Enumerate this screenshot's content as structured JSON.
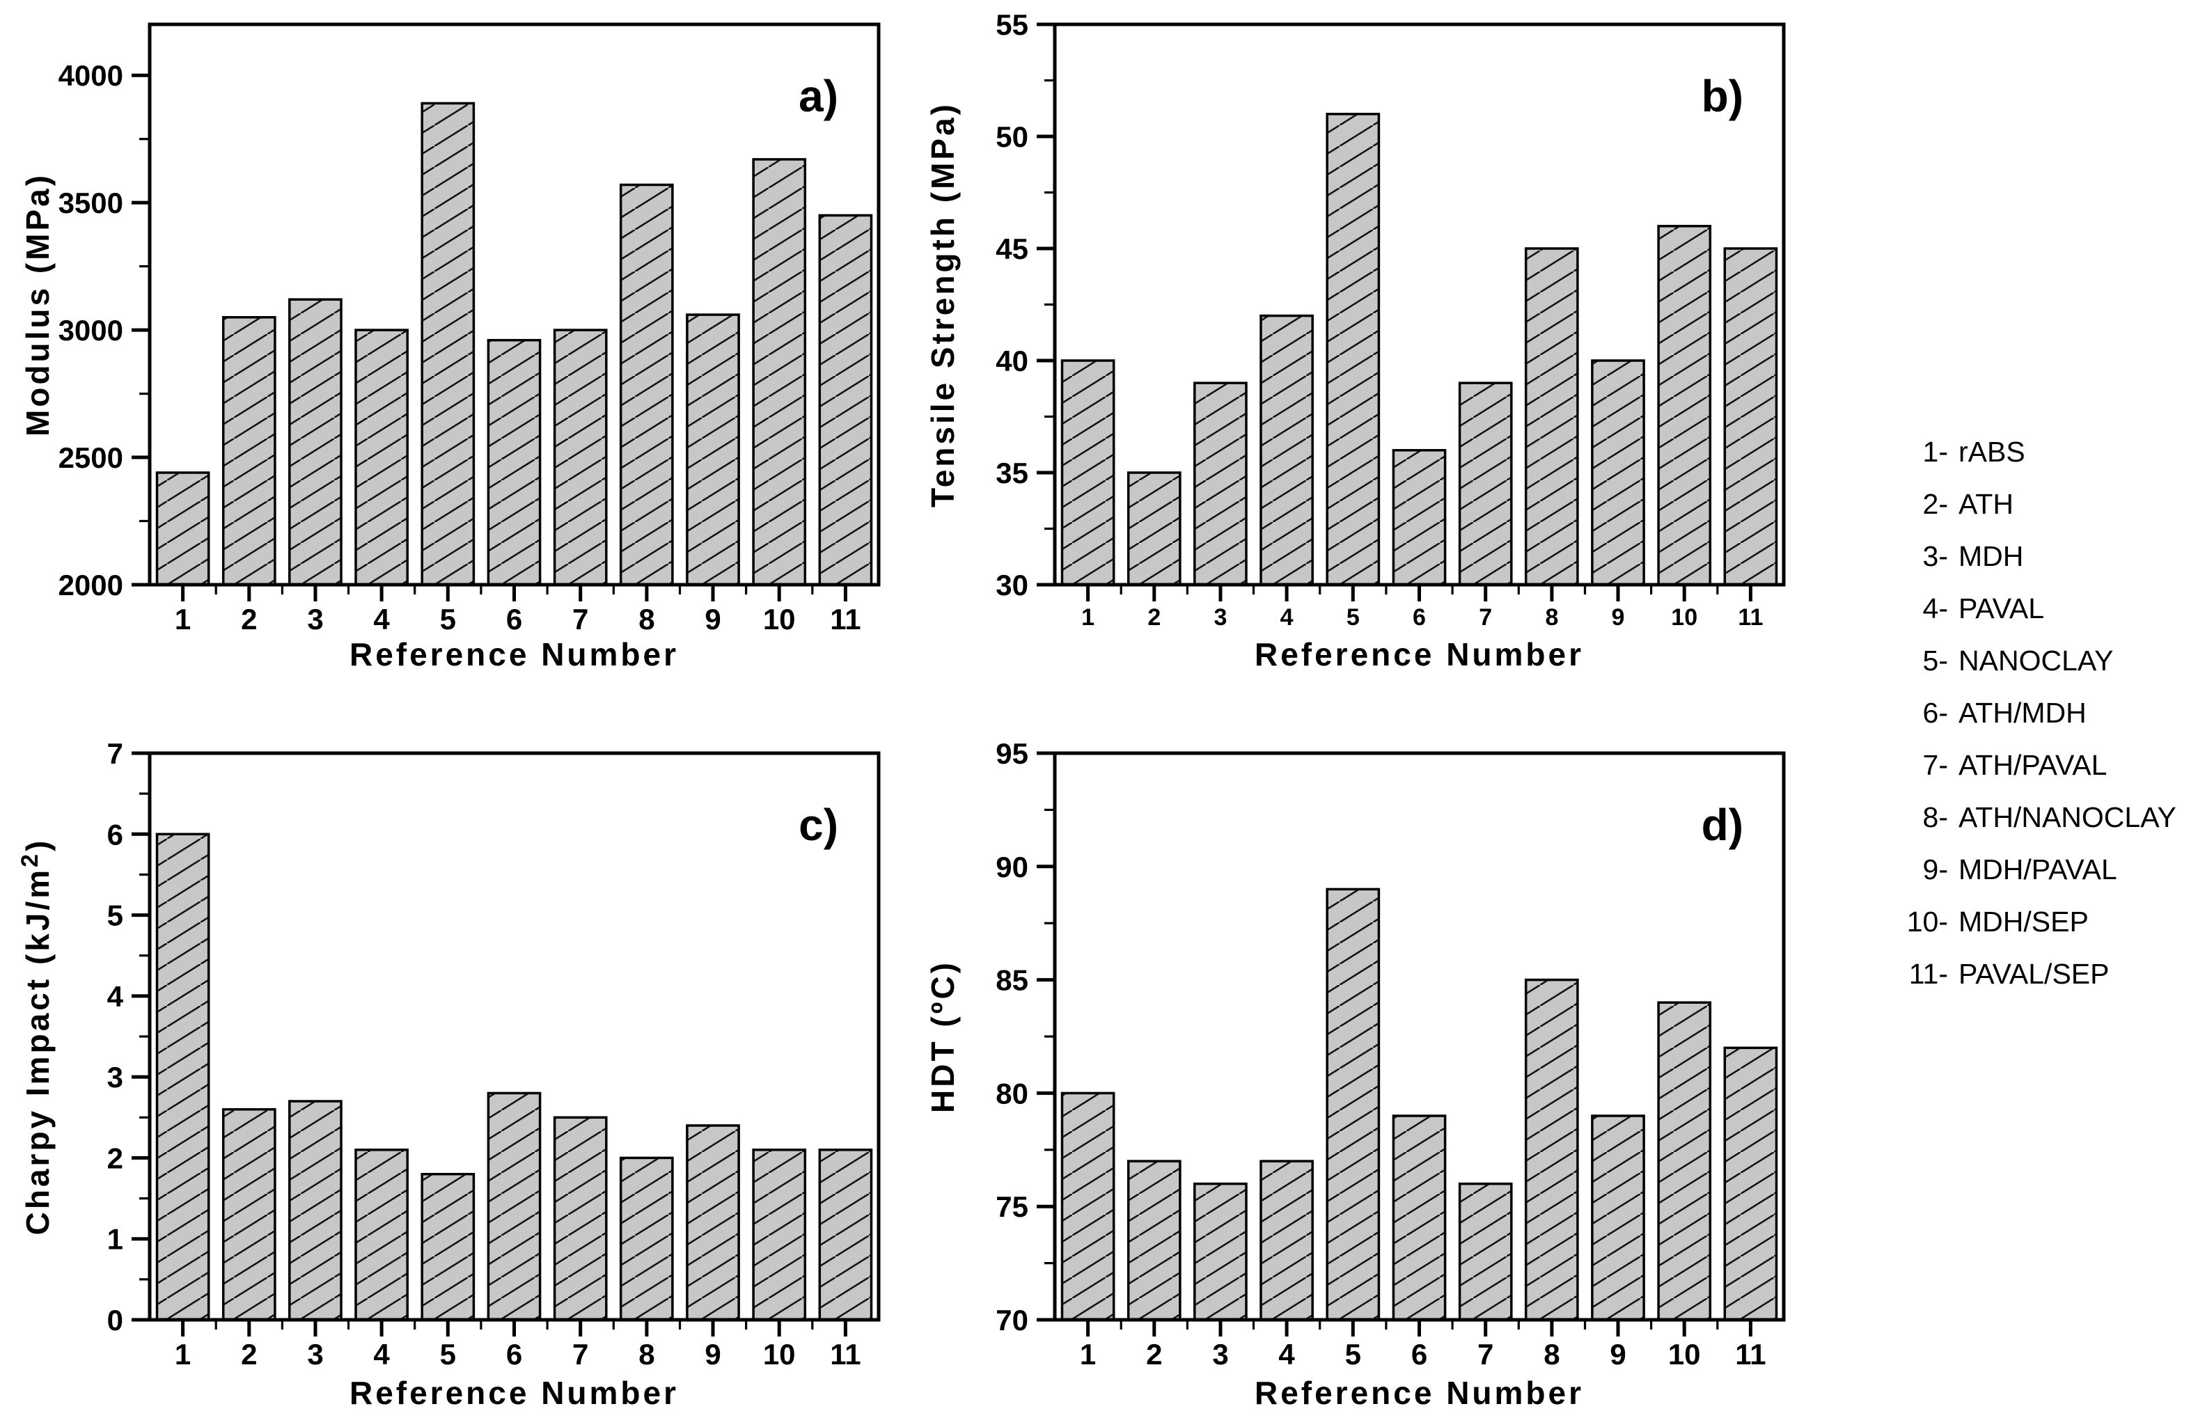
{
  "page": {
    "background": "#ffffff",
    "text_color": "#000000"
  },
  "styles": {
    "bar_fill": "#c7c7c7",
    "bar_edge": "#000000",
    "hatch_color": "#141414",
    "axis_color": "#000000"
  },
  "legend": {
    "items": [
      {
        "number": "1-",
        "label": "rABS"
      },
      {
        "number": "2-",
        "label": "ATH"
      },
      {
        "number": "3-",
        "label": "MDH"
      },
      {
        "number": "4-",
        "label": "PAVAL"
      },
      {
        "number": "5-",
        "label": "NANOCLAY"
      },
      {
        "number": "6-",
        "label": "ATH/MDH"
      },
      {
        "number": "7-",
        "label": "ATH/PAVAL"
      },
      {
        "number": "8-",
        "label": "ATH/NANOCLAY"
      },
      {
        "number": "9-",
        "label": "MDH/PAVAL"
      },
      {
        "number": "10-",
        "label": "MDH/SEP"
      },
      {
        "number": "11-",
        "label": "PAVAL/SEP"
      }
    ]
  },
  "chart_data": [
    {
      "type": "bar",
      "panel_label": "a)",
      "title": "",
      "xlabel": "Reference Number",
      "ylabel": "Modulus (MPa)",
      "categories": [
        "1",
        "2",
        "3",
        "4",
        "5",
        "6",
        "7",
        "8",
        "9",
        "10",
        "11"
      ],
      "values": [
        2440,
        3050,
        3120,
        3000,
        3890,
        2960,
        3000,
        3570,
        3060,
        3670,
        3450
      ],
      "ylim": [
        2000,
        4200
      ],
      "yticks": [
        2000,
        2500,
        3000,
        3500,
        4000
      ],
      "minor_step": 250,
      "grid": false,
      "hatch": "diagonal-forward",
      "legend_position": "none"
    },
    {
      "type": "bar",
      "panel_label": "b)",
      "title": "",
      "xlabel": "Reference Number",
      "ylabel": "Tensile Strength (MPa)",
      "categories": [
        "1",
        "2",
        "3",
        "4",
        "5",
        "6",
        "7",
        "8",
        "9",
        "10",
        "11"
      ],
      "values": [
        40,
        35,
        39,
        42,
        51,
        36,
        39,
        45,
        40,
        46,
        45
      ],
      "ylim": [
        30,
        55
      ],
      "yticks": [
        30,
        35,
        40,
        45,
        50,
        55
      ],
      "minor_step": 2.5,
      "grid": false,
      "hatch": "diagonal-forward",
      "legend_position": "none"
    },
    {
      "type": "bar",
      "panel_label": "c)",
      "title": "",
      "xlabel": "Reference Number",
      "ylabel": "Charpy Impact (kJ/m²)",
      "categories": [
        "1",
        "2",
        "3",
        "4",
        "5",
        "6",
        "7",
        "8",
        "9",
        "10",
        "11"
      ],
      "values": [
        6.0,
        2.6,
        2.7,
        2.1,
        1.8,
        2.8,
        2.5,
        2.0,
        2.4,
        2.1,
        2.1
      ],
      "ylim": [
        0,
        7
      ],
      "yticks": [
        0,
        1,
        2,
        3,
        4,
        5,
        6,
        7
      ],
      "minor_step": 0.5,
      "grid": false,
      "hatch": "diagonal-forward",
      "legend_position": "none"
    },
    {
      "type": "bar",
      "panel_label": "d)",
      "title": "",
      "xlabel": "Reference Number",
      "ylabel": "HDT (ºC)",
      "categories": [
        "1",
        "2",
        "3",
        "4",
        "5",
        "6",
        "7",
        "8",
        "9",
        "10",
        "11"
      ],
      "values": [
        80,
        77,
        76,
        77,
        89,
        79,
        76,
        85,
        79,
        84,
        82
      ],
      "ylim": [
        70,
        95
      ],
      "yticks": [
        70,
        75,
        80,
        85,
        90,
        95
      ],
      "minor_step": 2.5,
      "grid": false,
      "hatch": "diagonal-forward",
      "legend_position": "none"
    }
  ]
}
